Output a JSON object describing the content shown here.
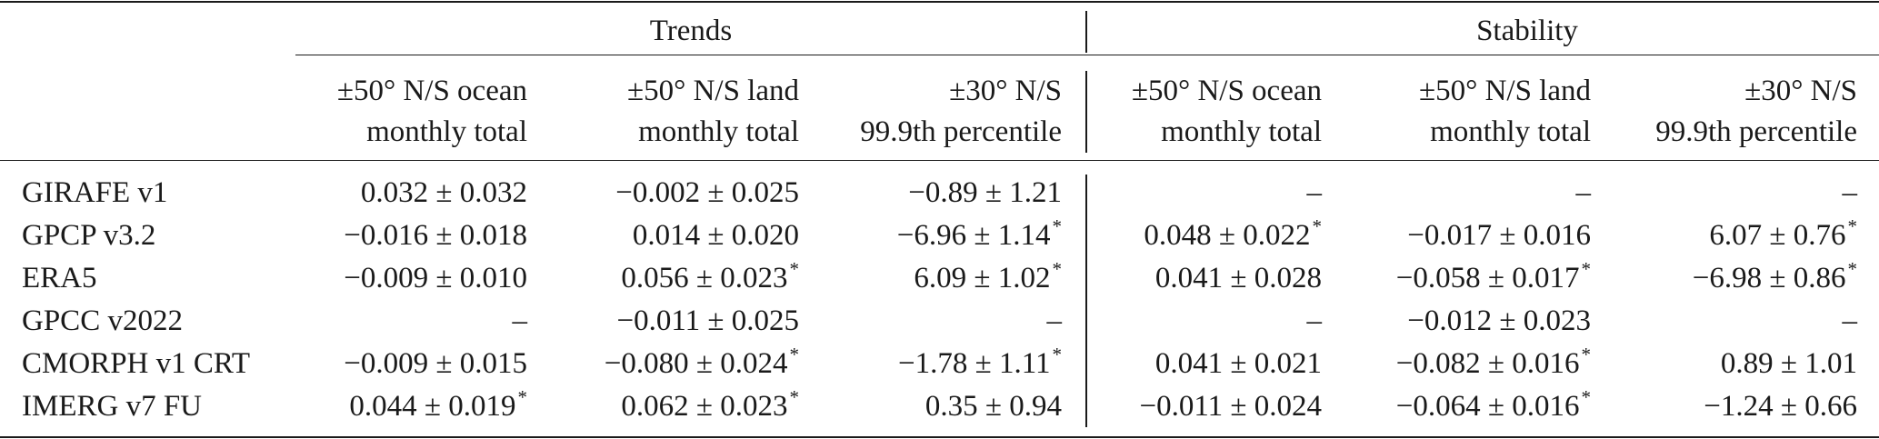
{
  "groups": [
    {
      "label": "Trends"
    },
    {
      "label": "Stability"
    }
  ],
  "columns": [
    {
      "line1": "±50° N/S ocean",
      "line2": "monthly total"
    },
    {
      "line1": "±50° N/S land",
      "line2": "monthly total"
    },
    {
      "line1": "±30° N/S",
      "line2": "99.9th percentile"
    },
    {
      "line1": "±50° N/S ocean",
      "line2": "monthly total"
    },
    {
      "line1": "±50° N/S land",
      "line2": "monthly total"
    },
    {
      "line1": "±30° N/S",
      "line2": "99.9th percentile"
    }
  ],
  "rows": [
    {
      "label": "GIRAFE v1",
      "cells": [
        {
          "v": "0.032 ± 0.032",
          "sig": ""
        },
        {
          "v": "−0.002 ± 0.025",
          "sig": ""
        },
        {
          "v": "−0.89 ± 1.21",
          "sig": ""
        },
        {
          "v": "–",
          "sig": ""
        },
        {
          "v": "–",
          "sig": ""
        },
        {
          "v": "–",
          "sig": ""
        }
      ]
    },
    {
      "label": "GPCP v3.2",
      "cells": [
        {
          "v": "−0.016 ± 0.018",
          "sig": ""
        },
        {
          "v": "0.014 ± 0.020",
          "sig": ""
        },
        {
          "v": "−6.96 ± 1.14",
          "sig": "*"
        },
        {
          "v": "0.048 ± 0.022",
          "sig": "*"
        },
        {
          "v": "−0.017 ± 0.016",
          "sig": ""
        },
        {
          "v": "6.07 ± 0.76",
          "sig": "*"
        }
      ]
    },
    {
      "label": "ERA5",
      "cells": [
        {
          "v": "−0.009 ± 0.010",
          "sig": ""
        },
        {
          "v": "0.056 ± 0.023",
          "sig": "*"
        },
        {
          "v": "6.09 ± 1.02",
          "sig": "*"
        },
        {
          "v": "0.041 ± 0.028",
          "sig": ""
        },
        {
          "v": "−0.058 ± 0.017",
          "sig": "*"
        },
        {
          "v": "−6.98 ± 0.86",
          "sig": "*"
        }
      ]
    },
    {
      "label": "GPCC v2022",
      "cells": [
        {
          "v": "–",
          "sig": ""
        },
        {
          "v": "−0.011 ± 0.025",
          "sig": ""
        },
        {
          "v": "–",
          "sig": ""
        },
        {
          "v": "–",
          "sig": ""
        },
        {
          "v": "−0.012 ± 0.023",
          "sig": ""
        },
        {
          "v": "–",
          "sig": ""
        }
      ]
    },
    {
      "label": "CMORPH v1 CRT",
      "cells": [
        {
          "v": "−0.009 ± 0.015",
          "sig": ""
        },
        {
          "v": "−0.080 ± 0.024",
          "sig": "*"
        },
        {
          "v": "−1.78 ± 1.11",
          "sig": "*"
        },
        {
          "v": "0.041 ± 0.021",
          "sig": ""
        },
        {
          "v": "−0.082 ± 0.016",
          "sig": "*"
        },
        {
          "v": "0.89 ± 1.01",
          "sig": ""
        }
      ]
    },
    {
      "label": "IMERG v7 FU",
      "cells": [
        {
          "v": "0.044 ± 0.019",
          "sig": "*"
        },
        {
          "v": "0.062 ± 0.023",
          "sig": "*"
        },
        {
          "v": "0.35 ± 0.94",
          "sig": ""
        },
        {
          "v": "−0.011 ± 0.024",
          "sig": ""
        },
        {
          "v": "−0.064 ± 0.016",
          "sig": "*"
        },
        {
          "v": "−1.24 ± 0.66",
          "sig": ""
        }
      ]
    }
  ]
}
